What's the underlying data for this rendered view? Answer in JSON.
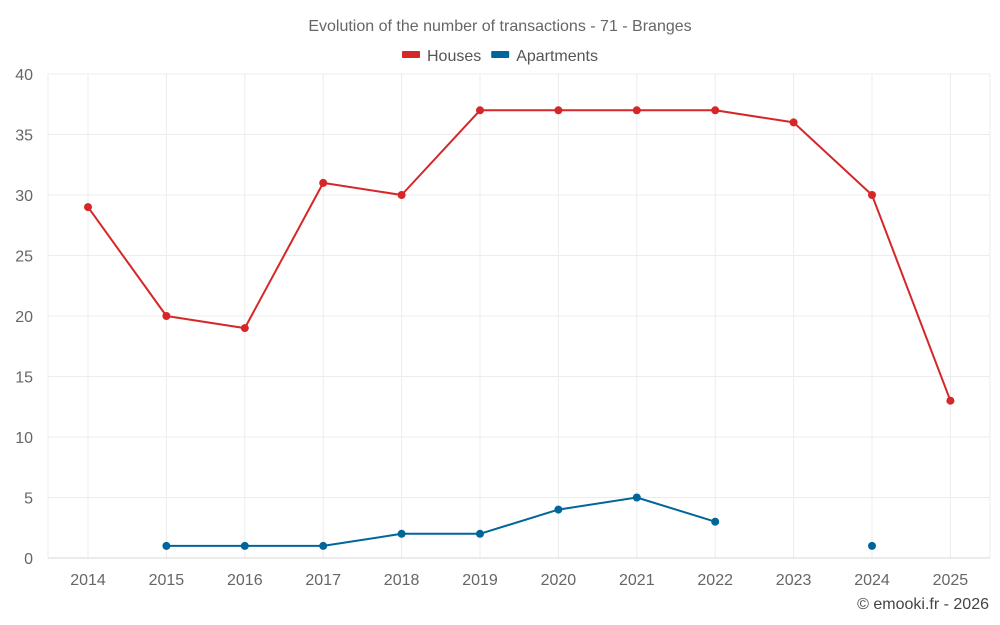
{
  "chart_data": {
    "type": "line",
    "title": "Evolution of the number of transactions - 71 - Branges",
    "categories": [
      "2014",
      "2015",
      "2016",
      "2017",
      "2018",
      "2019",
      "2020",
      "2021",
      "2022",
      "2023",
      "2024",
      "2025"
    ],
    "series": [
      {
        "name": "Houses",
        "color": "#d62728",
        "values": [
          29,
          20,
          19,
          31,
          30,
          37,
          37,
          37,
          37,
          36,
          30,
          13
        ]
      },
      {
        "name": "Apartments",
        "color": "#006699",
        "values": [
          null,
          1,
          1,
          1,
          2,
          2,
          4,
          5,
          3,
          null,
          1,
          null
        ]
      }
    ],
    "ylim": [
      0,
      40
    ],
    "yticks": [
      0,
      5,
      10,
      15,
      20,
      25,
      30,
      35,
      40
    ],
    "xlabel": "",
    "ylabel": "",
    "grid": true,
    "legend_position": "top-center"
  },
  "credit": "© emooki.fr - 2026"
}
